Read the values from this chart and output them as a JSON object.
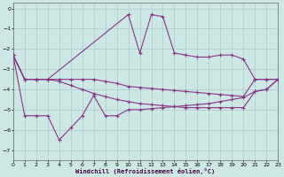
{
  "xlabel": "Windchill (Refroidissement éolien,°C)",
  "bg_color": "#cce8e4",
  "grid_color": "#aacccc",
  "line_color": "#883388",
  "xlim": [
    0,
    23
  ],
  "ylim": [
    -7.5,
    0.3
  ],
  "xticks": [
    0,
    1,
    2,
    3,
    4,
    5,
    6,
    7,
    8,
    9,
    10,
    11,
    12,
    13,
    14,
    15,
    16,
    17,
    18,
    19,
    20,
    21,
    22,
    23
  ],
  "yticks": [
    0,
    -1,
    -2,
    -3,
    -4,
    -5,
    -6,
    -7
  ],
  "line1_x": [
    0,
    1,
    2,
    3,
    4,
    5,
    6,
    7,
    8,
    9,
    10,
    11,
    12,
    13,
    14,
    15,
    16,
    17,
    18,
    19,
    20,
    21,
    22,
    23
  ],
  "line1_y": [
    -2.3,
    -3.5,
    -3.5,
    -3.5,
    -3.5,
    -3.5,
    -3.5,
    -3.5,
    -3.6,
    -3.7,
    -3.85,
    -3.9,
    -3.95,
    -4.0,
    -4.05,
    -4.1,
    -4.15,
    -4.2,
    -4.25,
    -4.3,
    -4.35,
    -3.5,
    -3.5,
    -3.5
  ],
  "line2_x": [
    0,
    1,
    2,
    3,
    4,
    5,
    6,
    7,
    8,
    9,
    10,
    11,
    12,
    13,
    14,
    15,
    16,
    17,
    18,
    19,
    20,
    21,
    22,
    23
  ],
  "line2_y": [
    -2.3,
    -3.5,
    -3.5,
    -3.5,
    -3.6,
    -3.8,
    -4.0,
    -4.2,
    -4.35,
    -4.5,
    -4.6,
    -4.7,
    -4.75,
    -4.8,
    -4.85,
    -4.9,
    -4.9,
    -4.9,
    -4.9,
    -4.9,
    -4.9,
    -4.1,
    -4.0,
    -3.5
  ],
  "line3_x": [
    0,
    1,
    2,
    3,
    4,
    5,
    6,
    7,
    8,
    9,
    10,
    11,
    12,
    13,
    14,
    15,
    16,
    17,
    18,
    19,
    20,
    21,
    22,
    23
  ],
  "line3_y": [
    -2.3,
    -5.3,
    -5.3,
    -5.3,
    -6.5,
    -5.9,
    -5.3,
    -4.3,
    -5.3,
    -5.3,
    -5.0,
    -5.0,
    -4.95,
    -4.9,
    -4.85,
    -4.8,
    -4.75,
    -4.7,
    -4.6,
    -4.5,
    -4.4,
    -4.1,
    -4.0,
    -3.5
  ],
  "line_spiky_x": [
    0,
    1,
    2,
    3,
    10,
    11,
    12,
    13,
    14,
    15,
    16,
    17,
    18,
    19,
    20,
    21,
    22,
    23
  ],
  "line_spiky_y": [
    -2.3,
    -3.5,
    -3.5,
    -3.5,
    -0.3,
    -2.2,
    -0.3,
    -0.4,
    -2.2,
    -2.3,
    -2.4,
    -2.4,
    -2.3,
    -2.3,
    -2.5,
    -3.5,
    -3.5,
    -3.5
  ]
}
